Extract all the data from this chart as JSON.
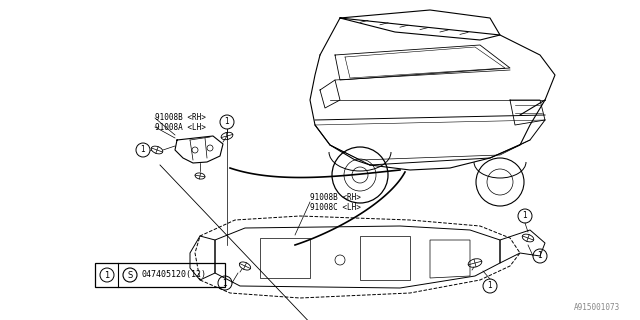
{
  "bg_color": "#ffffff",
  "line_color": "#000000",
  "watermark": "A915001073",
  "label_small_bracket_1": "91008B <RH>",
  "label_small_bracket_2": "91008A <LH>",
  "label_large_molding_1": "91008B <RH>",
  "label_large_molding_2": "91008C <LH>",
  "legend_part": "047405120(12)"
}
